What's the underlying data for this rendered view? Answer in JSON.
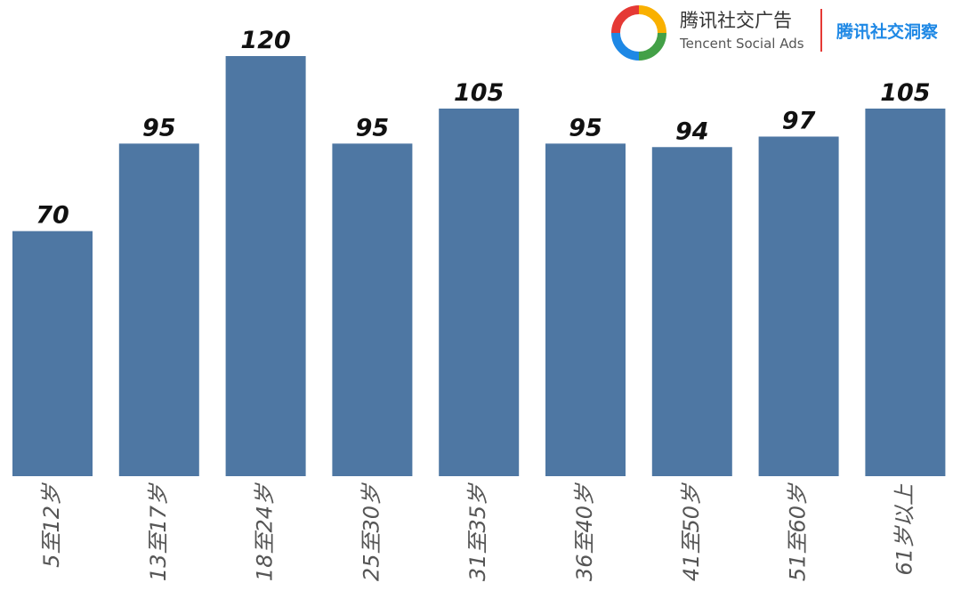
{
  "chart_data": {
    "type": "bar",
    "categories": [
      "5至12岁",
      "13至17岁",
      "18至24岁",
      "25至30岁",
      "31至35岁",
      "36至40岁",
      "41至50岁",
      "51至60岁",
      "61岁以上"
    ],
    "values": [
      70,
      95,
      120,
      95,
      105,
      95,
      94,
      97,
      105
    ],
    "color": "#4e77a3"
  },
  "logo": {
    "name_cn": "腾讯社交广告",
    "name_en": "Tencent Social Ads",
    "tagline": "腾讯社交洞察"
  }
}
